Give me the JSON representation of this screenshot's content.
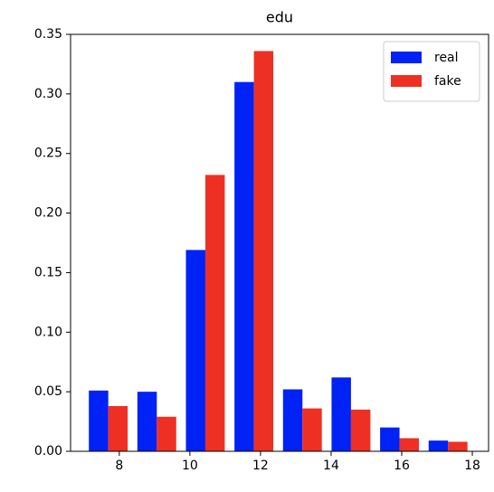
{
  "chart_data": {
    "type": "histogram",
    "title": "edu",
    "bins": [
      7,
      8.375,
      9.75,
      11.125,
      12.5,
      13.875,
      15.25,
      16.625,
      18
    ],
    "series": [
      {
        "name": "real",
        "color": "#0022f5",
        "values": [
          0.051,
          0.05,
          0.169,
          0.31,
          0.052,
          0.062,
          0.02,
          0.009
        ]
      },
      {
        "name": "fake",
        "color": "#ee3024",
        "values": [
          0.038,
          0.029,
          0.232,
          0.336,
          0.036,
          0.035,
          0.011,
          0.008
        ]
      }
    ],
    "xlim": [
      6.62,
      18.46
    ],
    "xticks": [
      8,
      10,
      12,
      14,
      16,
      18
    ],
    "ylim": [
      0,
      0.35
    ],
    "yticks": [
      {
        "value": 0,
        "label": "0.00"
      },
      0.05,
      {
        "value": 0.1,
        "label": "0.10"
      },
      0.15,
      {
        "value": 0.2,
        "label": "0.20"
      },
      0.25,
      {
        "value": 0.3,
        "label": "0.30"
      },
      0.35
    ],
    "legend": "upper right"
  }
}
